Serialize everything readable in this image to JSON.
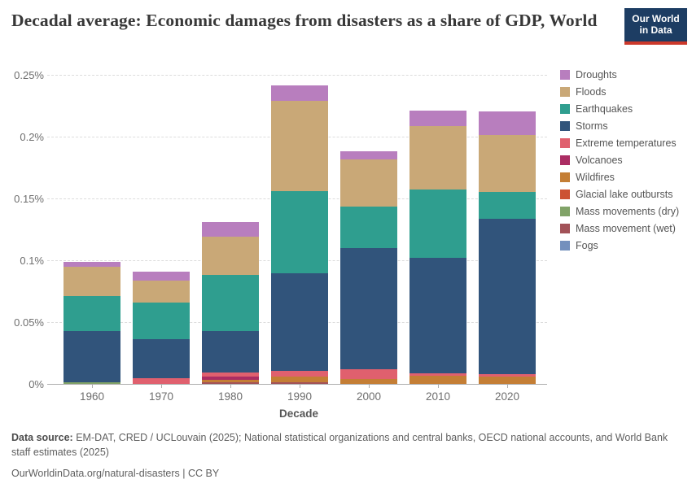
{
  "header": {
    "title": "Decadal average: Economic damages from disasters as a share of GDP, World",
    "logo_line1": "Our World",
    "logo_line2": "in Data",
    "logo_bg": "#1d3d63",
    "logo_accent": "#cc392b"
  },
  "footer": {
    "source_label": "Data source:",
    "source_text": " EM-DAT, CRED / UCLouvain (2025); National statistical organizations and central banks, OECD national accounts, and World Bank staff estimates (2025)",
    "citation": "OurWorldinData.org/natural-disasters | CC BY"
  },
  "chart_data": {
    "type": "bar",
    "stacked": true,
    "title": "Decadal average: Economic damages from disasters as a share of GDP, World",
    "xlabel": "Decade",
    "ylabel": "",
    "ylim": [
      0,
      0.25
    ],
    "grid": "dashed-horizontal",
    "legend_position": "right",
    "categories": [
      "1960",
      "1970",
      "1980",
      "1990",
      "2000",
      "2010",
      "2020"
    ],
    "yticks": [
      {
        "value": 0,
        "label": "0%"
      },
      {
        "value": 0.05,
        "label": "0.05%"
      },
      {
        "value": 0.1,
        "label": "0.1%"
      },
      {
        "value": 0.15,
        "label": "0.15%"
      },
      {
        "value": 0.2,
        "label": "0.2%"
      },
      {
        "value": 0.25,
        "label": "0.25%"
      }
    ],
    "unit": "% of GDP",
    "series_note": "series listed bottom-to-top of stack; legend shows reverse order",
    "series": [
      {
        "name": "Fogs",
        "color": "#7490bd",
        "values": [
          0,
          0,
          0,
          0,
          0,
          0,
          0
        ]
      },
      {
        "name": "Mass movement (wet)",
        "color": "#a25258",
        "values": [
          0,
          0,
          0.0015,
          0.001,
          0,
          0,
          0
        ]
      },
      {
        "name": "Mass movements (dry)",
        "color": "#81a368",
        "values": [
          0.0013,
          0,
          0,
          0,
          0,
          0,
          0
        ]
      },
      {
        "name": "Glacial lake outbursts",
        "color": "#cc5233",
        "values": [
          0,
          0,
          0,
          0,
          0,
          0,
          0
        ]
      },
      {
        "name": "Wildfires",
        "color": "#c47e35",
        "values": [
          0,
          0,
          0.002,
          0.0048,
          0.004,
          0.0066,
          0.0061
        ]
      },
      {
        "name": "Volcanoes",
        "color": "#ab2d63",
        "values": [
          0,
          0,
          0.0024,
          0,
          0,
          0,
          0
        ]
      },
      {
        "name": "Extreme temperatures",
        "color": "#e0606e",
        "values": [
          0,
          0.0046,
          0.0031,
          0.0048,
          0.0078,
          0.0018,
          0.0018
        ]
      },
      {
        "name": "Storms",
        "color": "#31547b",
        "values": [
          0.0417,
          0.0314,
          0.0336,
          0.079,
          0.0979,
          0.0934,
          0.1259
        ]
      },
      {
        "name": "Earthquakes",
        "color": "#2f9e8f",
        "values": [
          0.0283,
          0.0296,
          0.0454,
          0.0662,
          0.0337,
          0.0557,
          0.0215
        ]
      },
      {
        "name": "Floods",
        "color": "#c9a877",
        "values": [
          0.0235,
          0.018,
          0.0309,
          0.0731,
          0.0382,
          0.0513,
          0.046
        ]
      },
      {
        "name": "Droughts",
        "color": "#b87ebe",
        "values": [
          0.0039,
          0.0072,
          0.0123,
          0.0127,
          0.0066,
          0.0123,
          0.0189
        ]
      }
    ]
  }
}
